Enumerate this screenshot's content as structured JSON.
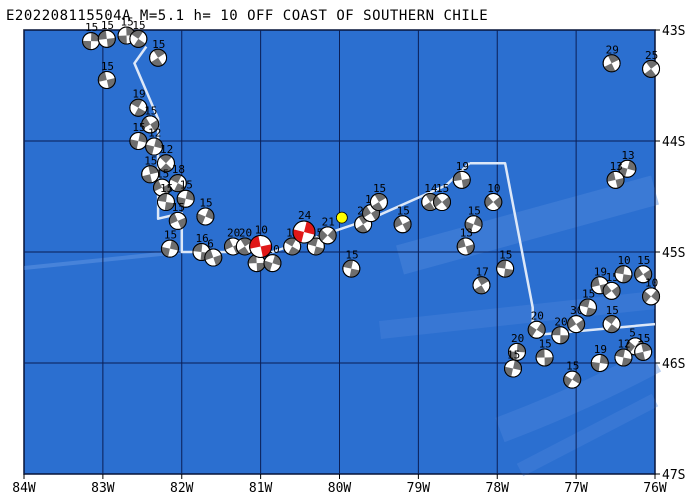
{
  "title": "E202208115504A M=5.1 h= 10 OFF COAST OF SOUTHERN CHILE",
  "lon_ticks": [
    "84W",
    "83W",
    "82W",
    "81W",
    "80W",
    "79W",
    "78W",
    "77W",
    "76W"
  ],
  "lat_ticks": [
    "43S",
    "44S",
    "45S",
    "46S",
    "47S"
  ],
  "lon_range": [
    -84,
    -76
  ],
  "lat_range": [
    -47,
    -43
  ],
  "colors": {
    "ocean": "#2b6fd0",
    "grid": "#0a1e55",
    "trench": "#4f88dc",
    "plate_boundary": "#dde8f8",
    "historic_fill": "#6e6e6e",
    "featured_fill": "#e01818",
    "epicenter": "#ffff00"
  },
  "events": [
    {
      "lon": -83.15,
      "lat": -43.1,
      "depth": "15"
    },
    {
      "lon": -82.95,
      "lat": -43.08,
      "depth": "15"
    },
    {
      "lon": -82.7,
      "lat": -43.05,
      "depth": "15"
    },
    {
      "lon": -82.55,
      "lat": -43.08,
      "depth": "15"
    },
    {
      "lon": -82.3,
      "lat": -43.25,
      "depth": "15"
    },
    {
      "lon": -82.95,
      "lat": -43.45,
      "depth": "15"
    },
    {
      "lon": -82.55,
      "lat": -43.7,
      "depth": "19"
    },
    {
      "lon": -82.4,
      "lat": -43.85,
      "depth": "15"
    },
    {
      "lon": -82.55,
      "lat": -44.0,
      "depth": "15"
    },
    {
      "lon": -82.35,
      "lat": -44.05,
      "depth": "12"
    },
    {
      "lon": -82.2,
      "lat": -44.2,
      "depth": "12"
    },
    {
      "lon": -82.4,
      "lat": -44.3,
      "depth": "15"
    },
    {
      "lon": -82.25,
      "lat": -44.42,
      "depth": "15"
    },
    {
      "lon": -82.05,
      "lat": -44.38,
      "depth": "18"
    },
    {
      "lon": -82.2,
      "lat": -44.55,
      "depth": "15"
    },
    {
      "lon": -81.95,
      "lat": -44.52,
      "depth": "15"
    },
    {
      "lon": -82.05,
      "lat": -44.72,
      "depth": "15"
    },
    {
      "lon": -81.7,
      "lat": -44.68,
      "depth": "15"
    },
    {
      "lon": -82.15,
      "lat": -44.97,
      "depth": "15"
    },
    {
      "lon": -81.75,
      "lat": -45.0,
      "depth": "16"
    },
    {
      "lon": -81.6,
      "lat": -45.05,
      "depth": "6"
    },
    {
      "lon": -81.35,
      "lat": -44.95,
      "depth": "20"
    },
    {
      "lon": -81.2,
      "lat": -44.95,
      "depth": "20"
    },
    {
      "lon": -81.05,
      "lat": -45.1,
      "depth": "15"
    },
    {
      "lon": -80.85,
      "lat": -45.1,
      "depth": "20"
    },
    {
      "lon": -80.6,
      "lat": -44.95,
      "depth": "15"
    },
    {
      "lon": -80.3,
      "lat": -44.95,
      "depth": "15"
    },
    {
      "lon": -80.15,
      "lat": -44.85,
      "depth": "21"
    },
    {
      "lon": -79.85,
      "lat": -45.15,
      "depth": "15"
    },
    {
      "lon": -79.7,
      "lat": -44.75,
      "depth": "25"
    },
    {
      "lon": -79.6,
      "lat": -44.65,
      "depth": "15"
    },
    {
      "lon": -79.5,
      "lat": -44.55,
      "depth": "15"
    },
    {
      "lon": -79.2,
      "lat": -44.75,
      "depth": "15"
    },
    {
      "lon": -78.85,
      "lat": -44.55,
      "depth": "14"
    },
    {
      "lon": -78.7,
      "lat": -44.55,
      "depth": "15"
    },
    {
      "lon": -78.45,
      "lat": -44.35,
      "depth": "19"
    },
    {
      "lon": -78.3,
      "lat": -44.75,
      "depth": "15"
    },
    {
      "lon": -78.4,
      "lat": -44.95,
      "depth": "13"
    },
    {
      "lon": -78.05,
      "lat": -44.55,
      "depth": "10"
    },
    {
      "lon": -77.9,
      "lat": -45.15,
      "depth": "15"
    },
    {
      "lon": -78.2,
      "lat": -45.3,
      "depth": "17"
    },
    {
      "lon": -77.5,
      "lat": -45.7,
      "depth": "20"
    },
    {
      "lon": -77.2,
      "lat": -45.75,
      "depth": "20"
    },
    {
      "lon": -77.0,
      "lat": -45.65,
      "depth": "30"
    },
    {
      "lon": -76.85,
      "lat": -45.5,
      "depth": "15"
    },
    {
      "lon": -76.7,
      "lat": -45.3,
      "depth": "19"
    },
    {
      "lon": -76.55,
      "lat": -45.35,
      "depth": "15"
    },
    {
      "lon": -76.4,
      "lat": -45.2,
      "depth": "10"
    },
    {
      "lon": -76.15,
      "lat": -45.2,
      "depth": "15"
    },
    {
      "lon": -76.05,
      "lat": -45.4,
      "depth": "10"
    },
    {
      "lon": -76.55,
      "lat": -45.65,
      "depth": "15"
    },
    {
      "lon": -76.25,
      "lat": -45.85,
      "depth": "5"
    },
    {
      "lon": -76.15,
      "lat": -45.9,
      "depth": "15"
    },
    {
      "lon": -77.75,
      "lat": -45.9,
      "depth": "20"
    },
    {
      "lon": -77.4,
      "lat": -45.95,
      "depth": "15"
    },
    {
      "lon": -77.05,
      "lat": -46.15,
      "depth": "15"
    },
    {
      "lon": -76.7,
      "lat": -46.0,
      "depth": "19"
    },
    {
      "lon": -76.4,
      "lat": -45.95,
      "depth": "12"
    },
    {
      "lon": -76.35,
      "lat": -44.25,
      "depth": "13"
    },
    {
      "lon": -76.5,
      "lat": -44.35,
      "depth": "13"
    },
    {
      "lon": -76.55,
      "lat": -43.3,
      "depth": "29"
    },
    {
      "lon": -76.05,
      "lat": -43.35,
      "depth": "25"
    },
    {
      "lon": -77.8,
      "lat": -46.05,
      "depth": "15"
    }
  ],
  "featured_events": [
    {
      "lon": -81.0,
      "lat": -44.95,
      "depth": "10"
    },
    {
      "lon": -80.45,
      "lat": -44.82,
      "depth": "24"
    }
  ],
  "epicenter": {
    "lon": -79.97,
    "lat": -44.69
  }
}
